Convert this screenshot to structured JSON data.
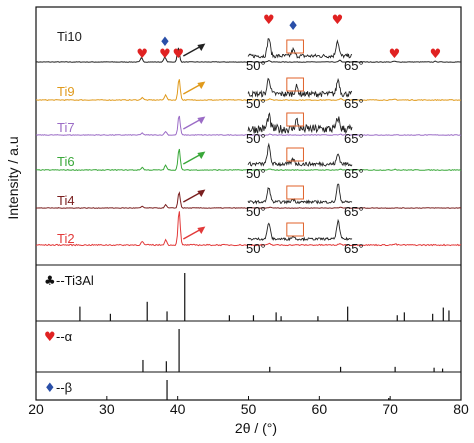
{
  "chart_data": {
    "type": "line",
    "xlabel": "2θ / (°)",
    "ylabel": "Intensity / a.u",
    "xlim": [
      20,
      80
    ],
    "x_ticks": [
      "20",
      "30",
      "40",
      "50",
      "60",
      "70",
      "80"
    ],
    "series": [
      {
        "name": "Ti10",
        "color": "#222222",
        "peaks": [
          {
            "x": 34.9,
            "h": 0.3
          },
          {
            "x": 38.2,
            "h": 0.35
          },
          {
            "x": 40.1,
            "h": 1.0
          },
          {
            "x": 52.9,
            "h": 0.12
          },
          {
            "x": 62.9,
            "h": 0.12
          },
          {
            "x": 70.6,
            "h": 0.06
          },
          {
            "x": 76.4,
            "h": 0.05
          }
        ],
        "inset": {
          "color": "#222222",
          "peaks": [
            {
              "x": 53.0,
              "h": 1.0
            },
            {
              "x": 56.5,
              "h": 0.35
            },
            {
              "x": 62.9,
              "h": 0.85
            }
          ],
          "noise": 0.22,
          "has_box": true
        }
      },
      {
        "name": "Ti9",
        "color": "#e09a1c",
        "peaks": [
          {
            "x": 35.0,
            "h": 0.12
          },
          {
            "x": 38.3,
            "h": 0.25
          },
          {
            "x": 40.2,
            "h": 1.0
          },
          {
            "x": 53.0,
            "h": 0.06
          },
          {
            "x": 63.0,
            "h": 0.05
          },
          {
            "x": 70.7,
            "h": 0.04
          }
        ],
        "inset": {
          "color": "#222222",
          "peaks": [
            {
              "x": 53.0,
              "h": 0.9
            },
            {
              "x": 57.0,
              "h": 0.4
            },
            {
              "x": 63.0,
              "h": 0.8
            }
          ],
          "noise": 0.32,
          "has_box": true
        }
      },
      {
        "name": "Ti7",
        "color": "#9b6cc6",
        "peaks": [
          {
            "x": 35.0,
            "h": 0.1
          },
          {
            "x": 38.3,
            "h": 0.18
          },
          {
            "x": 40.2,
            "h": 1.0
          },
          {
            "x": 53.0,
            "h": 0.04
          },
          {
            "x": 63.0,
            "h": 0.04
          }
        ],
        "inset": {
          "color": "#222222",
          "peaks": [
            {
              "x": 53.0,
              "h": 0.7
            },
            {
              "x": 57.0,
              "h": 0.5
            },
            {
              "x": 63.0,
              "h": 0.6
            }
          ],
          "noise": 0.5,
          "has_box": true
        }
      },
      {
        "name": "Ti6",
        "color": "#3aa83a",
        "peaks": [
          {
            "x": 35.0,
            "h": 0.12
          },
          {
            "x": 38.3,
            "h": 0.22
          },
          {
            "x": 40.2,
            "h": 1.0
          },
          {
            "x": 53.0,
            "h": 0.05
          },
          {
            "x": 63.0,
            "h": 0.05
          },
          {
            "x": 70.7,
            "h": 0.04
          }
        ],
        "inset": {
          "color": "#222222",
          "peaks": [
            {
              "x": 53.0,
              "h": 1.0
            },
            {
              "x": 56.5,
              "h": 0.25
            },
            {
              "x": 63.0,
              "h": 0.55
            }
          ],
          "noise": 0.22,
          "has_box": true
        }
      },
      {
        "name": "Ti4",
        "color": "#7a1f1f",
        "peaks": [
          {
            "x": 35.0,
            "h": 0.1
          },
          {
            "x": 38.3,
            "h": 0.2
          },
          {
            "x": 40.2,
            "h": 1.0
          },
          {
            "x": 53.0,
            "h": 0.05
          },
          {
            "x": 63.0,
            "h": 0.05
          }
        ],
        "inset": {
          "color": "#222222",
          "peaks": [
            {
              "x": 53.0,
              "h": 0.8
            },
            {
              "x": 56.5,
              "h": 0.15
            },
            {
              "x": 63.0,
              "h": 1.0
            }
          ],
          "noise": 0.15,
          "has_box": true
        }
      },
      {
        "name": "Ti2",
        "color": "#e23a3a",
        "peaks": [
          {
            "x": 35.0,
            "h": 0.1
          },
          {
            "x": 38.3,
            "h": 0.15
          },
          {
            "x": 40.2,
            "h": 1.0
          },
          {
            "x": 53.0,
            "h": 0.04
          },
          {
            "x": 63.0,
            "h": 0.04
          },
          {
            "x": 70.7,
            "h": 0.03
          }
        ],
        "inset": {
          "color": "#222222",
          "peaks": [
            {
              "x": 53.0,
              "h": 0.9
            },
            {
              "x": 56.5,
              "h": 0.15
            },
            {
              "x": 63.0,
              "h": 1.0
            }
          ],
          "noise": 0.13,
          "has_box": true
        }
      }
    ],
    "inset_range_labels": [
      "50°",
      "65°"
    ],
    "peak_markers": [
      {
        "symbol": "♥",
        "phase": "alpha",
        "color": "#e02222",
        "x": 35.0
      },
      {
        "symbol": "♥",
        "phase": "alpha",
        "color": "#e02222",
        "x": 38.2
      },
      {
        "symbol": "♦",
        "phase": "beta",
        "color": "#2a4fa8",
        "x": 38.2
      },
      {
        "symbol": "♥",
        "phase": "alpha",
        "color": "#e02222",
        "x": 40.1
      },
      {
        "symbol": "♥",
        "phase": "alpha",
        "color": "#e02222",
        "x": 70.6
      },
      {
        "symbol": "♥",
        "phase": "alpha",
        "color": "#e02222",
        "x": 76.4
      }
    ],
    "inset_markers": [
      {
        "symbol": "♥",
        "color": "#e02222",
        "x": 53.0
      },
      {
        "symbol": "♦",
        "color": "#2a4fa8",
        "x": 56.5
      },
      {
        "symbol": "♥",
        "color": "#e02222",
        "x": 62.9
      }
    ],
    "reference_patterns": [
      {
        "symbol": "♣",
        "symbol_color": "#111111",
        "label_text": "--Ti3Al",
        "lines": [
          {
            "x": 26.2,
            "h": 0.3
          },
          {
            "x": 30.5,
            "h": 0.15
          },
          {
            "x": 35.7,
            "h": 0.4
          },
          {
            "x": 38.5,
            "h": 0.2
          },
          {
            "x": 41.0,
            "h": 1.0
          },
          {
            "x": 47.3,
            "h": 0.12
          },
          {
            "x": 50.7,
            "h": 0.12
          },
          {
            "x": 53.9,
            "h": 0.18
          },
          {
            "x": 54.6,
            "h": 0.1
          },
          {
            "x": 59.8,
            "h": 0.1
          },
          {
            "x": 64.0,
            "h": 0.3
          },
          {
            "x": 71.0,
            "h": 0.12
          },
          {
            "x": 72.0,
            "h": 0.18
          },
          {
            "x": 76.0,
            "h": 0.15
          },
          {
            "x": 77.5,
            "h": 0.28
          },
          {
            "x": 78.3,
            "h": 0.22
          }
        ]
      },
      {
        "symbol": "♥",
        "symbol_color": "#e02222",
        "label_text": "--α",
        "lines": [
          {
            "x": 35.1,
            "h": 0.28
          },
          {
            "x": 38.4,
            "h": 0.25
          },
          {
            "x": 40.2,
            "h": 1.0
          },
          {
            "x": 53.0,
            "h": 0.12
          },
          {
            "x": 63.0,
            "h": 0.12
          },
          {
            "x": 70.7,
            "h": 0.12
          },
          {
            "x": 76.2,
            "h": 0.1
          },
          {
            "x": 77.4,
            "h": 0.08
          }
        ]
      },
      {
        "symbol": "♦",
        "symbol_color": "#2a4fa8",
        "label_text": "--β",
        "lines": [
          {
            "x": 38.5,
            "h": 1.0
          },
          {
            "x": 69.8,
            "h": 0.1
          }
        ]
      }
    ]
  }
}
